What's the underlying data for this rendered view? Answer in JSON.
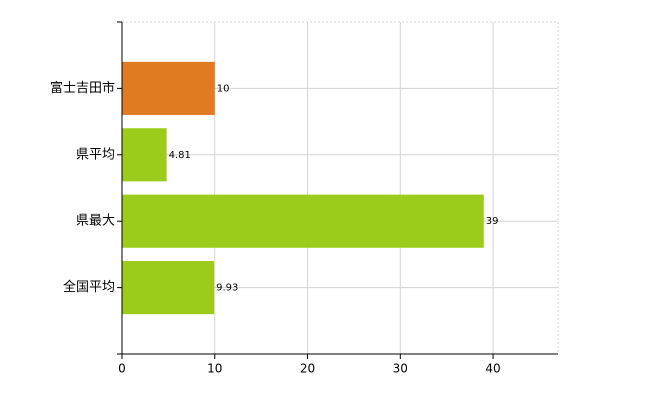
{
  "chart_data": {
    "type": "barh",
    "categories": [
      "富士吉田市",
      "県平均",
      "県最大",
      "全国平均"
    ],
    "values": [
      10,
      4.81,
      39,
      9.93
    ],
    "colors": [
      "#e07b22",
      "#9dcb1c",
      "#9dcb1c",
      "#9dcb1c"
    ],
    "xlim": [
      0,
      47
    ],
    "xticks": [
      0,
      10,
      20,
      30,
      40
    ],
    "grid": true
  }
}
